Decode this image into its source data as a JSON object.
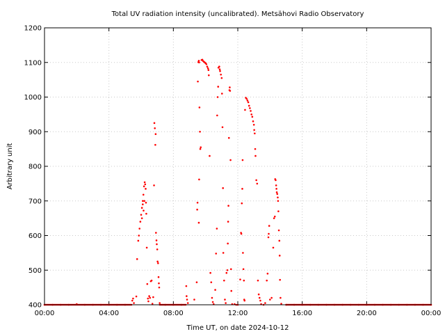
{
  "chart_data": {
    "type": "scatter",
    "title": "Total UV radiation intensity (uncalibrated). Metsähovi Radio Observatory",
    "xlabel": "Time UT, on date 2024-10-12",
    "ylabel": "Arbitrary unit",
    "xlim": [
      0,
      24
    ],
    "ylim": [
      400,
      1200
    ],
    "x_ticks": [
      {
        "value": 0,
        "label": "00:00"
      },
      {
        "value": 4,
        "label": "04:00"
      },
      {
        "value": 8,
        "label": "08:00"
      },
      {
        "value": 12,
        "label": "12:00"
      },
      {
        "value": 16,
        "label": "16:00"
      },
      {
        "value": 20,
        "label": "20:00"
      },
      {
        "value": 24,
        "label": "00:00"
      }
    ],
    "y_ticks": [
      400,
      500,
      600,
      700,
      800,
      900,
      1000,
      1100,
      1200
    ],
    "grid": true,
    "marker_color": "#ff0000",
    "series": [
      {
        "name": "",
        "points": [
          [
            0.0,
            400
          ],
          [
            0.5,
            400
          ],
          [
            1.0,
            400
          ],
          [
            1.5,
            400
          ],
          [
            2.0,
            402
          ],
          [
            2.5,
            400
          ],
          [
            3.0,
            400
          ],
          [
            3.5,
            400
          ],
          [
            4.0,
            400
          ],
          [
            4.5,
            400
          ],
          [
            5.0,
            400
          ],
          [
            5.45,
            412
          ],
          [
            5.5,
            418
          ],
          [
            5.55,
            405
          ],
          [
            5.7,
            424
          ],
          [
            5.75,
            532
          ],
          [
            5.82,
            585
          ],
          [
            5.86,
            600
          ],
          [
            5.9,
            620
          ],
          [
            5.95,
            640
          ],
          [
            6.0,
            660
          ],
          [
            6.05,
            680
          ],
          [
            6.1,
            700
          ],
          [
            6.14,
            718
          ],
          [
            6.18,
            742
          ],
          [
            6.22,
            754
          ],
          [
            6.25,
            748
          ],
          [
            6.28,
            735
          ],
          [
            6.2,
            700
          ],
          [
            6.15,
            672
          ],
          [
            6.1,
            690
          ],
          [
            6.05,
            650
          ],
          [
            6.3,
            695
          ],
          [
            6.32,
            663
          ],
          [
            6.35,
            565
          ],
          [
            6.38,
            460
          ],
          [
            6.42,
            418
          ],
          [
            6.45,
            410
          ],
          [
            6.5,
            425
          ],
          [
            6.55,
            420
          ],
          [
            6.6,
            468
          ],
          [
            6.65,
            470
          ],
          [
            6.7,
            403
          ],
          [
            6.75,
            422
          ],
          [
            6.8,
            745
          ],
          [
            6.82,
            925
          ],
          [
            6.85,
            910
          ],
          [
            6.88,
            862
          ],
          [
            6.9,
            893
          ],
          [
            6.92,
            608
          ],
          [
            6.95,
            586
          ],
          [
            6.97,
            575
          ],
          [
            7.0,
            560
          ],
          [
            7.02,
            525
          ],
          [
            7.05,
            520
          ],
          [
            7.08,
            480
          ],
          [
            7.1,
            462
          ],
          [
            7.12,
            450
          ],
          [
            7.15,
            405
          ],
          [
            7.5,
            400
          ],
          [
            8.0,
            400
          ],
          [
            8.5,
            400
          ],
          [
            8.8,
            454
          ],
          [
            8.82,
            425
          ],
          [
            8.85,
            415
          ],
          [
            8.9,
            405
          ],
          [
            9.3,
            415
          ],
          [
            9.45,
            465
          ],
          [
            9.48,
            675
          ],
          [
            9.5,
            695
          ],
          [
            9.52,
            1045
          ],
          [
            9.55,
            1101
          ],
          [
            9.58,
            1105
          ],
          [
            9.6,
            1100
          ],
          [
            9.62,
            970
          ],
          [
            9.65,
            900
          ],
          [
            9.67,
            850
          ],
          [
            9.7,
            855
          ],
          [
            9.6,
            762
          ],
          [
            9.58,
            637
          ],
          [
            9.75,
            1107
          ],
          [
            9.8,
            1108
          ],
          [
            9.85,
            1104
          ],
          [
            9.9,
            1102
          ],
          [
            9.95,
            1100
          ],
          [
            10.0,
            1098
          ],
          [
            10.05,
            1095
          ],
          [
            10.1,
            1088
          ],
          [
            10.15,
            1083
          ],
          [
            10.18,
            1078
          ],
          [
            10.2,
            1063
          ],
          [
            10.25,
            830
          ],
          [
            10.3,
            492
          ],
          [
            10.35,
            465
          ],
          [
            10.4,
            420
          ],
          [
            10.45,
            408
          ],
          [
            10.5,
            402
          ],
          [
            10.6,
            443
          ],
          [
            10.65,
            548
          ],
          [
            10.7,
            620
          ],
          [
            10.72,
            947
          ],
          [
            10.75,
            1000
          ],
          [
            10.78,
            1030
          ],
          [
            10.8,
            1085
          ],
          [
            10.85,
            1088
          ],
          [
            10.88,
            1080
          ],
          [
            10.9,
            1075
          ],
          [
            10.95,
            1065
          ],
          [
            11.0,
            1055
          ],
          [
            11.02,
            1010
          ],
          [
            11.05,
            913
          ],
          [
            11.08,
            737
          ],
          [
            11.1,
            550
          ],
          [
            11.15,
            470
          ],
          [
            11.2,
            415
          ],
          [
            11.25,
            405
          ],
          [
            11.3,
            492
          ],
          [
            11.35,
            500
          ],
          [
            11.38,
            577
          ],
          [
            11.4,
            640
          ],
          [
            11.42,
            686
          ],
          [
            11.45,
            882
          ],
          [
            11.48,
            1020
          ],
          [
            11.5,
            1028
          ],
          [
            11.52,
            1018
          ],
          [
            11.55,
            818
          ],
          [
            11.58,
            503
          ],
          [
            11.6,
            440
          ],
          [
            11.65,
            402
          ],
          [
            11.8,
            402
          ],
          [
            11.9,
            400
          ],
          [
            12.0,
            400
          ],
          [
            12.15,
            473
          ],
          [
            12.2,
            608
          ],
          [
            12.22,
            605
          ],
          [
            12.25,
            693
          ],
          [
            12.28,
            735
          ],
          [
            12.3,
            818
          ],
          [
            12.32,
            550
          ],
          [
            12.35,
            503
          ],
          [
            12.38,
            470
          ],
          [
            12.4,
            415
          ],
          [
            12.42,
            412
          ],
          [
            12.45,
            963
          ],
          [
            12.5,
            998
          ],
          [
            12.55,
            995
          ],
          [
            12.6,
            990
          ],
          [
            12.65,
            985
          ],
          [
            12.7,
            975
          ],
          [
            12.75,
            968
          ],
          [
            12.8,
            960
          ],
          [
            12.85,
            950
          ],
          [
            12.9,
            943
          ],
          [
            12.95,
            930
          ],
          [
            13.0,
            920
          ],
          [
            13.02,
            905
          ],
          [
            13.05,
            895
          ],
          [
            13.08,
            850
          ],
          [
            13.1,
            830
          ],
          [
            13.15,
            760
          ],
          [
            13.2,
            750
          ],
          [
            13.25,
            470
          ],
          [
            13.3,
            430
          ],
          [
            13.35,
            420
          ],
          [
            13.4,
            412
          ],
          [
            13.45,
            402
          ],
          [
            13.6,
            400
          ],
          [
            13.7,
            405
          ],
          [
            13.8,
            470
          ],
          [
            13.85,
            490
          ],
          [
            13.9,
            595
          ],
          [
            13.92,
            605
          ],
          [
            13.95,
            628
          ],
          [
            14.0,
            415
          ],
          [
            14.1,
            420
          ],
          [
            14.2,
            565
          ],
          [
            14.25,
            650
          ],
          [
            14.3,
            655
          ],
          [
            14.32,
            763
          ],
          [
            14.35,
            760
          ],
          [
            14.38,
            745
          ],
          [
            14.4,
            735
          ],
          [
            14.42,
            725
          ],
          [
            14.45,
            720
          ],
          [
            14.48,
            710
          ],
          [
            14.5,
            700
          ],
          [
            14.52,
            670
          ],
          [
            14.55,
            615
          ],
          [
            14.58,
            585
          ],
          [
            14.6,
            542
          ],
          [
            14.62,
            472
          ],
          [
            14.65,
            420
          ],
          [
            14.7,
            403
          ],
          [
            15.0,
            400
          ],
          [
            15.5,
            400
          ],
          [
            16.0,
            400
          ],
          [
            16.5,
            400
          ],
          [
            17.0,
            400
          ],
          [
            17.5,
            400
          ],
          [
            18.0,
            400
          ],
          [
            18.5,
            400
          ],
          [
            19.0,
            400
          ],
          [
            19.5,
            400
          ],
          [
            20.0,
            400
          ],
          [
            20.5,
            400
          ],
          [
            21.0,
            400
          ],
          [
            21.5,
            400
          ],
          [
            22.0,
            400
          ],
          [
            22.5,
            400
          ],
          [
            23.0,
            400
          ],
          [
            23.5,
            400
          ],
          [
            24.0,
            400
          ]
        ]
      }
    ]
  }
}
